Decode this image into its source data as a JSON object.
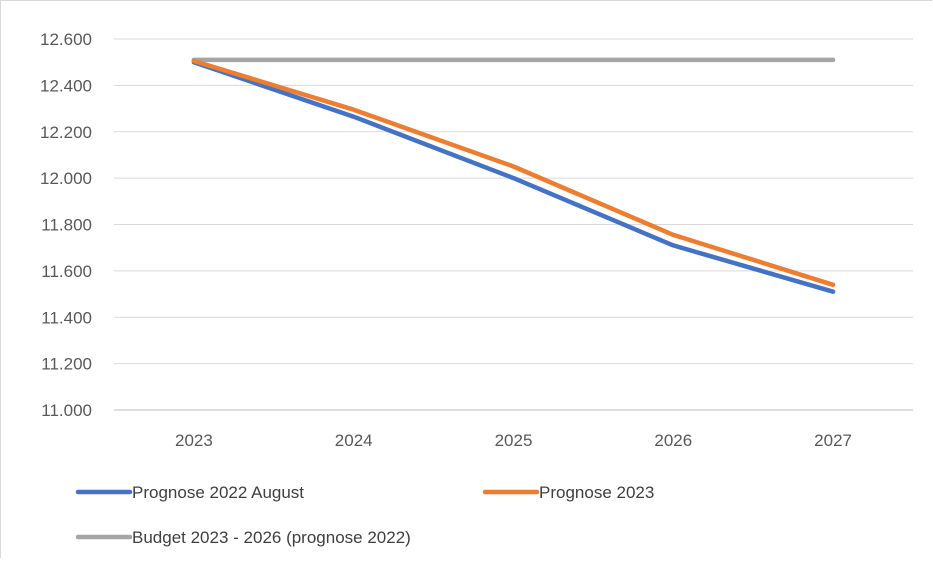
{
  "chart_data": {
    "type": "line",
    "title": "",
    "xlabel": "",
    "ylabel": "",
    "categories": [
      "2023",
      "2024",
      "2025",
      "2026",
      "2027"
    ],
    "ylim": [
      11000,
      12600
    ],
    "yticks": [
      11000,
      11200,
      11400,
      11600,
      11800,
      12000,
      12200,
      12400,
      12600
    ],
    "ytick_labels": [
      "11.000",
      "11.200",
      "11.400",
      "11.600",
      "11.800",
      "12.000",
      "12.200",
      "12.400",
      "12.600"
    ],
    "grid": true,
    "legend_position": "bottom",
    "series": [
      {
        "name": "Prognose 2022 August",
        "color": "#4472C4",
        "values": [
          12500,
          12265,
          12000,
          11710,
          11510
        ]
      },
      {
        "name": "Prognose 2023",
        "color": "#ED7D31",
        "values": [
          12505,
          12295,
          12050,
          11755,
          11540
        ]
      },
      {
        "name": "Budget 2023 - 2026 (prognose 2022)",
        "color": "#A5A5A5",
        "values": [
          12510,
          12510,
          12510,
          12510,
          12510
        ]
      }
    ]
  }
}
